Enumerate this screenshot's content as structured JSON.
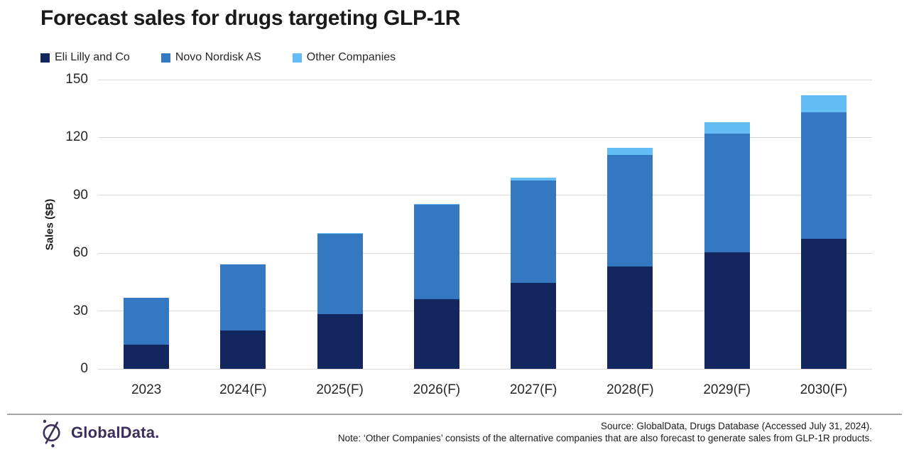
{
  "header": {
    "title": "Forecast sales for drugs targeting GLP-1R"
  },
  "legend": {
    "items": [
      {
        "label": "Eli Lilly and Co",
        "color": "#13275e"
      },
      {
        "label": "Novo Nordisk AS",
        "color": "#3578c2"
      },
      {
        "label": "Other Companies",
        "color": "#64bef5"
      }
    ]
  },
  "chart_data": {
    "type": "bar",
    "stacked": true,
    "title": "Forecast sales for drugs targeting GLP-1R",
    "categories": [
      "2023",
      "2024(F)",
      "2025(F)",
      "2026(F)",
      "2027(F)",
      "2028(F)",
      "2029(F)",
      "2030(F)"
    ],
    "series": [
      {
        "name": "Eli Lilly and Co",
        "color": "#13275e",
        "values": [
          12.5,
          20,
          28.5,
          36,
          44.5,
          53,
          60.5,
          67.5
        ]
      },
      {
        "name": "Novo Nordisk AS",
        "color": "#3578c2",
        "values": [
          24.5,
          34,
          41.5,
          49,
          53,
          58,
          61.5,
          65.5
        ]
      },
      {
        "name": "Other Companies",
        "color": "#64bef5",
        "values": [
          0,
          0,
          0.5,
          0.5,
          1.5,
          3.5,
          6,
          9
        ]
      }
    ],
    "totals": [
      37,
      54,
      70.5,
      85.5,
      99,
      114.5,
      128,
      142
    ],
    "xlabel": "",
    "ylabel": "Sales ($B)",
    "ylim": [
      0,
      150
    ],
    "yticks": [
      0,
      30,
      60,
      90,
      120,
      150
    ],
    "grid": true,
    "legend_position": "top-left"
  },
  "colors": {
    "grid": "#d9d9d9",
    "axis_text": "#262626",
    "title_text": "#1a1a1a",
    "divider": "#a6a6a6",
    "brand_purple": "#3b2f5a"
  },
  "footer": {
    "brand": "GlobalData.",
    "source_line": "Source: GlobalData, Drugs Database (Accessed July 31, 2024).",
    "note_line": "Note: ‘Other Companies’ consists of the alternative companies that are also forecast to generate sales from GLP-1R products."
  }
}
